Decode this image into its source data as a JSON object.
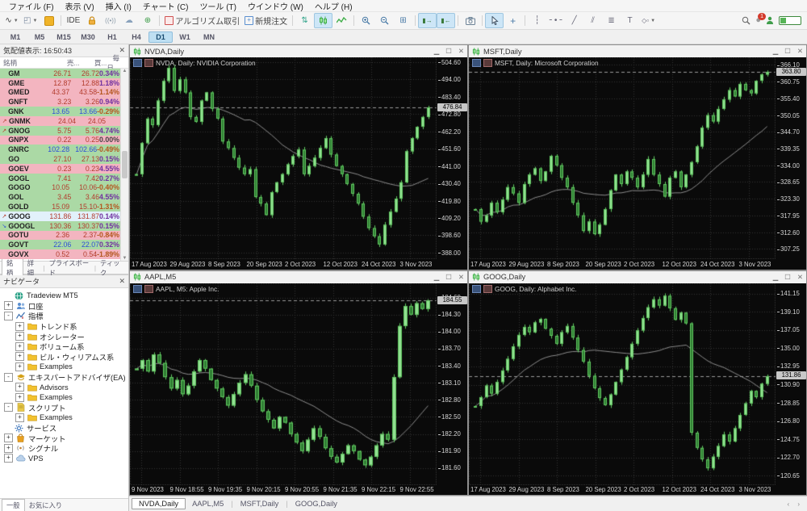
{
  "menu": {
    "items": [
      "ファイル (F)",
      "表示 (V)",
      "挿入 (I)",
      "チャート (C)",
      "ツール (T)",
      "ウインドウ (W)",
      "ヘルプ (H)"
    ]
  },
  "toolbar": {
    "ide_label": "IDE",
    "algo_label": "アルゴリズム取引",
    "new_order_label": "新規注文",
    "notification_count": "1",
    "accent_active": "#cde6f7",
    "candle_green": "#3fae49"
  },
  "timeframes": {
    "items": [
      "M1",
      "M5",
      "M15",
      "M30",
      "H1",
      "H4",
      "D1",
      "W1",
      "MN"
    ],
    "active": "D1"
  },
  "market_watch": {
    "title": "気配値表示: 16:50:43",
    "columns": [
      "銘柄",
      "売...",
      "買...",
      "毎日..."
    ],
    "rows": [
      {
        "symbol": "GM",
        "bid": "26.71",
        "ask": "26.72",
        "daily": "0.34%",
        "tone": "green",
        "arrow": "",
        "price_color": "red"
      },
      {
        "symbol": "GME",
        "bid": "12.87",
        "ask": "12.88",
        "daily": "1.18%",
        "tone": "pink",
        "arrow": "",
        "price_color": "red"
      },
      {
        "symbol": "GMED",
        "bid": "43.37",
        "ask": "43.58",
        "daily": "-1.14%",
        "tone": "pink",
        "arrow": "",
        "price_color": "red"
      },
      {
        "symbol": "GNFT",
        "bid": "3.23",
        "ask": "3.26",
        "daily": "0.94%",
        "tone": "pink",
        "arrow": "",
        "price_color": "red"
      },
      {
        "symbol": "GNK",
        "bid": "13.65",
        "ask": "13.66",
        "daily": "-0.29%",
        "tone": "green",
        "arrow": "",
        "price_color": "blue"
      },
      {
        "symbol": "GNMK",
        "bid": "24.04",
        "ask": "24.05",
        "daily": "",
        "tone": "pink",
        "arrow": "up",
        "price_color": "red"
      },
      {
        "symbol": "GNOG",
        "bid": "5.75",
        "ask": "5.76",
        "daily": "4.74%",
        "tone": "green",
        "arrow": "up",
        "price_color": "red"
      },
      {
        "symbol": "GNPX",
        "bid": "0.22",
        "ask": "0.25",
        "daily": "0.00%",
        "tone": "pink",
        "arrow": "",
        "price_color": "red"
      },
      {
        "symbol": "GNRC",
        "bid": "102.28",
        "ask": "102.66",
        "daily": "-0.49%",
        "tone": "green",
        "arrow": "",
        "price_color": "blue"
      },
      {
        "symbol": "GO",
        "bid": "27.10",
        "ask": "27.13",
        "daily": "0.15%",
        "tone": "green",
        "arrow": "",
        "price_color": "red"
      },
      {
        "symbol": "GOEV",
        "bid": "0.23",
        "ask": "0.23",
        "daily": "4.55%",
        "tone": "pink",
        "arrow": "",
        "price_color": "red"
      },
      {
        "symbol": "GOGL",
        "bid": "7.41",
        "ask": "7.42",
        "daily": "0.27%",
        "tone": "green",
        "arrow": "",
        "price_color": "red"
      },
      {
        "symbol": "GOGO",
        "bid": "10.05",
        "ask": "10.06",
        "daily": "-0.40%",
        "tone": "green",
        "arrow": "",
        "price_color": "red"
      },
      {
        "symbol": "GOL",
        "bid": "3.45",
        "ask": "3.46",
        "daily": "4.55%",
        "tone": "green",
        "arrow": "",
        "price_color": "red"
      },
      {
        "symbol": "GOLD",
        "bid": "15.09",
        "ask": "15.10",
        "daily": "-1.31%",
        "tone": "green",
        "arrow": "",
        "price_color": "red"
      },
      {
        "symbol": "GOOG",
        "bid": "131.86",
        "ask": "131.87",
        "daily": "0.14%",
        "tone": "selected",
        "arrow": "up",
        "price_color": "red"
      },
      {
        "symbol": "GOOGL",
        "bid": "130.36",
        "ask": "130.37",
        "daily": "0.15%",
        "tone": "green",
        "arrow": "down",
        "price_color": "red"
      },
      {
        "symbol": "GOTU",
        "bid": "2.36",
        "ask": "2.37",
        "daily": "-0.84%",
        "tone": "pink",
        "arrow": "",
        "price_color": "red"
      },
      {
        "symbol": "GOVT",
        "bid": "22.06",
        "ask": "22.07",
        "daily": "0.32%",
        "tone": "green",
        "arrow": "",
        "price_color": "blue"
      },
      {
        "symbol": "GOVX",
        "bid": "0.52",
        "ask": "0.54",
        "daily": "-1.89%",
        "tone": "pink",
        "arrow": "",
        "price_color": "red"
      }
    ],
    "tabs": [
      "銘柄",
      "詳細",
      "プライスボード",
      "ティック"
    ],
    "active_tab": "銘柄"
  },
  "navigator": {
    "title": "ナビゲータ",
    "tabs": [
      "一般",
      "お気に入り"
    ],
    "active_tab": "一般",
    "tree": [
      {
        "label": "Tradeview MT5",
        "icon": "globe",
        "level": 0,
        "expand": ""
      },
      {
        "label": "口座",
        "icon": "accounts",
        "level": 0,
        "expand": "+"
      },
      {
        "label": "指標",
        "icon": "indicator",
        "level": 0,
        "expand": "-"
      },
      {
        "label": "トレンド系",
        "icon": "folder",
        "level": 1,
        "expand": "+"
      },
      {
        "label": "オシレーター",
        "icon": "folder",
        "level": 1,
        "expand": "+"
      },
      {
        "label": "ボリューム系",
        "icon": "folder",
        "level": 1,
        "expand": "+"
      },
      {
        "label": "ビル・ウィリアムス系",
        "icon": "folder",
        "level": 1,
        "expand": "+"
      },
      {
        "label": "Examples",
        "icon": "folder",
        "level": 1,
        "expand": "+"
      },
      {
        "label": "エキスパートアドバイザ(EA)",
        "icon": "ea",
        "level": 0,
        "expand": "-"
      },
      {
        "label": "Advisors",
        "icon": "folder",
        "level": 1,
        "expand": "+"
      },
      {
        "label": "Examples",
        "icon": "folder",
        "level": 1,
        "expand": "+"
      },
      {
        "label": "スクリプト",
        "icon": "script",
        "level": 0,
        "expand": "-"
      },
      {
        "label": "Examples",
        "icon": "folder",
        "level": 1,
        "expand": "+"
      },
      {
        "label": "サービス",
        "icon": "service",
        "level": 0,
        "expand": ""
      },
      {
        "label": "マーケット",
        "icon": "market",
        "level": 0,
        "expand": "+"
      },
      {
        "label": "シグナル",
        "icon": "signal",
        "level": 0,
        "expand": "+"
      },
      {
        "label": "VPS",
        "icon": "vps",
        "level": 0,
        "expand": "+"
      }
    ]
  },
  "chart_tabs": {
    "items": [
      "NVDA,Daily",
      "AAPL,M5",
      "MSFT,Daily",
      "GOOG,Daily"
    ],
    "active": "NVDA,Daily"
  },
  "chart_data": [
    {
      "type": "candlestick",
      "window_title": "NVDA,Daily",
      "label": "NVDA, Daily: NVIDIA Corporation",
      "ylim": [
        384.0,
        507.5
      ],
      "y_ticks": [
        "504.60",
        "494.00",
        "483.40",
        "472.80",
        "462.20",
        "451.60",
        "441.00",
        "430.40",
        "419.80",
        "409.20",
        "398.60",
        "388.00"
      ],
      "current_price": "476.84",
      "x_labels": [
        "17 Aug 2023",
        "29 Aug 2023",
        "8 Sep 2023",
        "20 Sep 2023",
        "2 Oct 2023",
        "12 Oct 2023",
        "24 Oct 2023",
        "3 Nov 2023"
      ],
      "closes": [
        436,
        455,
        470,
        466,
        481,
        493,
        501,
        487,
        494,
        486,
        471,
        468,
        481,
        486,
        476,
        470,
        456,
        452,
        446,
        440,
        436,
        439,
        422,
        418,
        411,
        425,
        431,
        436,
        442,
        447,
        451,
        436,
        441,
        446,
        452,
        458,
        448,
        441,
        436,
        430,
        424,
        418,
        410,
        403,
        398,
        393,
        405,
        413,
        421,
        431,
        450,
        458,
        465,
        471,
        476.84
      ]
    },
    {
      "type": "candlestick",
      "window_title": "MSFT,Daily",
      "label": "MSFT, Daily: Microsoft Corporation",
      "ylim": [
        304.0,
        368.5
      ],
      "y_ticks": [
        "366.10",
        "360.75",
        "355.40",
        "350.05",
        "344.70",
        "339.35",
        "334.00",
        "328.65",
        "323.30",
        "317.95",
        "312.60",
        "307.25"
      ],
      "current_price": "363.80",
      "x_labels": [
        "17 Aug 2023",
        "29 Aug 2023",
        "8 Sep 2023",
        "20 Sep 2023",
        "2 Oct 2023",
        "12 Oct 2023",
        "24 Oct 2023",
        "3 Nov 2023"
      ],
      "closes": [
        320,
        316,
        318,
        322,
        319,
        323,
        327,
        325,
        322,
        328,
        331,
        333,
        329,
        332,
        337,
        334,
        330,
        327,
        322,
        318,
        313,
        316,
        312,
        315,
        320,
        326,
        331,
        328,
        332,
        330,
        327,
        331,
        336,
        331,
        328,
        324,
        330,
        332,
        327,
        331,
        335,
        340,
        346,
        350,
        348,
        352,
        355,
        358,
        356,
        360,
        358,
        357,
        361,
        363,
        363.8
      ]
    },
    {
      "type": "candlestick",
      "window_title": "AAPL,M5",
      "label": "AAPL, M5: Apple Inc.",
      "ylim": [
        181.3,
        184.85
      ],
      "y_ticks": [
        "184.60",
        "184.30",
        "184.00",
        "183.70",
        "183.40",
        "183.10",
        "182.80",
        "182.50",
        "182.20",
        "181.90",
        "181.60"
      ],
      "current_price": "184.55",
      "x_labels": [
        "9 Nov 2023",
        "9 Nov 18:55",
        "9 Nov 19:35",
        "9 Nov 20:15",
        "9 Nov 20:55",
        "9 Nov 21:35",
        "9 Nov 22:15",
        "9 Nov 22:55"
      ],
      "closes": [
        183.35,
        183.5,
        183.3,
        183.6,
        183.45,
        183.2,
        183.0,
        183.15,
        182.9,
        183.05,
        183.3,
        183.5,
        183.35,
        183.15,
        183.0,
        182.85,
        182.7,
        182.9,
        183.1,
        183.25,
        183.05,
        182.8,
        182.6,
        182.45,
        182.3,
        182.5,
        182.4,
        182.2,
        182.05,
        181.9,
        182.1,
        182.3,
        182.15,
        181.95,
        181.8,
        181.7,
        181.85,
        182.0,
        181.9,
        181.75,
        181.65,
        181.8,
        182.0,
        182.2,
        182.1,
        183.2,
        184.1,
        184.45,
        184.3,
        184.5,
        184.4,
        184.55
      ]
    },
    {
      "type": "candlestick",
      "window_title": "GOOG,Daily",
      "label": "GOOG, Daily: Alphabet Inc.",
      "ylim": [
        119.6,
        142.3
      ],
      "y_ticks": [
        "141.15",
        "139.10",
        "137.05",
        "135.00",
        "132.95",
        "130.90",
        "128.85",
        "126.80",
        "124.75",
        "122.70",
        "120.65"
      ],
      "current_price": "131.86",
      "x_labels": [
        "17 Aug 2023",
        "29 Aug 2023",
        "8 Sep 2023",
        "20 Sep 2023",
        "2 Oct 2023",
        "12 Oct 2023",
        "24 Oct 2023",
        "3 Nov 2023"
      ],
      "closes": [
        128.5,
        129.5,
        130.8,
        129.9,
        131.2,
        132.5,
        133.8,
        135.2,
        136.5,
        137.4,
        136.8,
        137.9,
        138.3,
        137.2,
        136.4,
        135.5,
        136.8,
        137.5,
        136.2,
        134.8,
        133.5,
        131.9,
        130.5,
        129.4,
        128.6,
        129.8,
        131.2,
        132.6,
        134.0,
        135.5,
        137.0,
        138.4,
        139.6,
        140.5,
        139.8,
        140.9,
        139.5,
        138.2,
        139.0,
        137.8,
        125.5,
        123.8,
        122.5,
        121.5,
        122.8,
        124.0,
        125.3,
        124.5,
        126.0,
        127.5,
        128.8,
        130.2,
        129.5,
        131.0,
        131.86
      ]
    }
  ]
}
